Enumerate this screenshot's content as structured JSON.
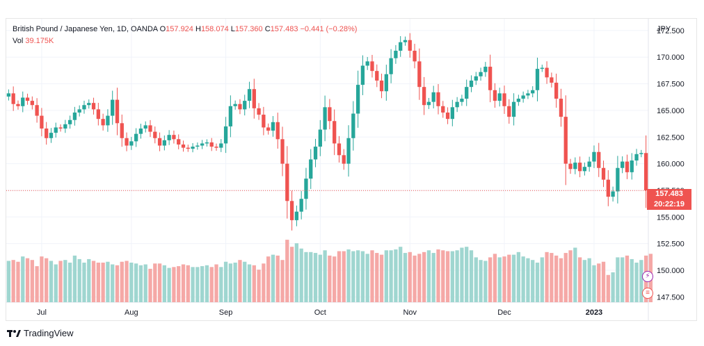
{
  "legend": {
    "symbol": "British Pound / Japanese Yen, 1D, OANDA",
    "o_label": "O",
    "o_value": "157.924",
    "h_label": "H",
    "h_value": "158.074",
    "l_label": "L",
    "l_value": "157.360",
    "c_label": "C",
    "c_value": "157.483",
    "change": "−0.441 (−0.28%)",
    "vol_label": "Vol",
    "vol_value": "39.175K"
  },
  "axis_currency": "JPY",
  "last_price": "157.483",
  "countdown": "20:22:19",
  "brand": "TradingView",
  "colors": {
    "up": "#26a69a",
    "down": "#ef5350",
    "vol_up": "#9fd6d0",
    "vol_down": "#f5a8a6",
    "grid": "#f0f3fa"
  },
  "chart_data": {
    "type": "candlestick",
    "y_ticks": [
      "172.500",
      "170.000",
      "167.500",
      "165.000",
      "162.500",
      "160.000",
      "157.500",
      "155.000",
      "152.500",
      "150.000",
      "147.500"
    ],
    "ylim": [
      147.0,
      173.6
    ],
    "x_labels": [
      "Jul",
      "Aug",
      "Sep",
      "Oct",
      "Nov",
      "Dec",
      "2023"
    ],
    "x_label_index": [
      7,
      26,
      46,
      66,
      85,
      105,
      124
    ],
    "closes": [
      166.6,
      165.6,
      165.4,
      166.2,
      165.9,
      165.5,
      164.5,
      163.3,
      162.4,
      162.9,
      163.4,
      163.3,
      163.7,
      164.1,
      164.8,
      165.1,
      165.5,
      165.7,
      165.1,
      164.2,
      163.6,
      164.5,
      166.0,
      163.8,
      162.4,
      161.7,
      162.1,
      162.8,
      163.3,
      163.6,
      163.0,
      162.4,
      161.7,
      162.2,
      162.7,
      162.3,
      161.8,
      161.5,
      161.4,
      161.6,
      161.7,
      161.9,
      162.0,
      161.6,
      161.5,
      161.9,
      163.5,
      165.4,
      165.6,
      165.1,
      165.9,
      167.0,
      165.2,
      164.6,
      163.4,
      163.1,
      163.9,
      162.3,
      160.0,
      156.5,
      154.7,
      155.5,
      156.7,
      158.6,
      160.4,
      161.6,
      163.2,
      165.3,
      164.0,
      161.9,
      160.8,
      160.0,
      162.4,
      164.7,
      167.4,
      169.2,
      169.6,
      168.7,
      167.8,
      166.8,
      168.4,
      169.9,
      170.6,
      171.4,
      171.6,
      170.6,
      169.6,
      167.2,
      165.5,
      165.8,
      166.7,
      165.4,
      164.8,
      164.2,
      165.3,
      165.8,
      166.1,
      167.2,
      167.8,
      168.2,
      168.6,
      169.1,
      166.9,
      165.9,
      166.6,
      165.4,
      164.4,
      165.8,
      166.1,
      166.4,
      166.6,
      166.9,
      168.9,
      169.0,
      168.1,
      167.6,
      166.1,
      164.4,
      160.0,
      159.5,
      160.1,
      159.3,
      159.7,
      160.2,
      161.1,
      159.6,
      158.5,
      156.9,
      157.4,
      159.6,
      160.2,
      159.2,
      160.3,
      160.9,
      161.0,
      157.5
    ],
    "volumes": [
      47,
      48,
      46,
      52,
      50,
      48,
      41,
      52,
      50,
      47,
      43,
      47,
      48,
      45,
      53,
      49,
      45,
      49,
      47,
      45,
      45,
      46,
      43,
      42,
      46,
      47,
      45,
      44,
      42,
      43,
      38,
      44,
      44,
      42,
      39,
      40,
      41,
      43,
      42,
      40,
      40,
      41,
      42,
      40,
      43,
      40,
      46,
      44,
      45,
      48,
      46,
      43,
      42,
      37,
      44,
      52,
      54,
      53,
      48,
      71,
      63,
      67,
      61,
      57,
      57,
      56,
      54,
      59,
      53,
      52,
      58,
      58,
      60,
      58,
      59,
      58,
      55,
      59,
      56,
      54,
      59,
      59,
      60,
      63,
      56,
      57,
      53,
      55,
      57,
      59,
      56,
      60,
      59,
      58,
      58,
      59,
      62,
      63,
      59,
      51,
      48,
      47,
      51,
      55,
      51,
      52,
      54,
      54,
      57,
      52,
      50,
      48,
      45,
      51,
      57,
      56,
      53,
      50,
      56,
      59,
      62,
      51,
      48,
      50,
      42,
      44,
      46,
      31,
      34,
      51,
      51,
      53,
      49,
      45,
      48,
      53,
      55
    ]
  }
}
